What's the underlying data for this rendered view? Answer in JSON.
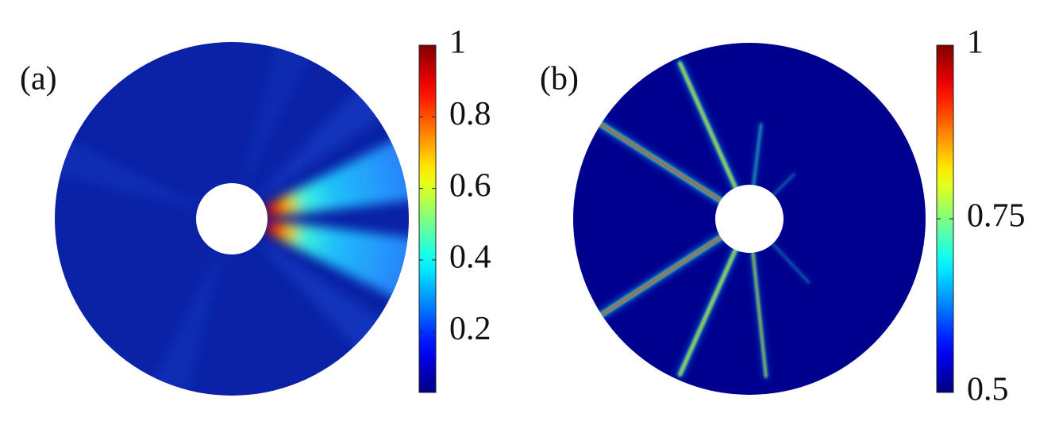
{
  "chart_data": [
    {
      "type": "heatmap",
      "label": "(a)",
      "colormap": "jet",
      "zlim": [
        0.03,
        1
      ],
      "zticks": [
        0.2,
        0.4,
        0.6,
        0.8,
        1
      ]
    },
    {
      "type": "heatmap",
      "label": "(b)",
      "colormap": "jet",
      "zlim": [
        0.5,
        1
      ],
      "zticks": [
        0.5,
        0.75,
        1
      ]
    }
  ]
}
